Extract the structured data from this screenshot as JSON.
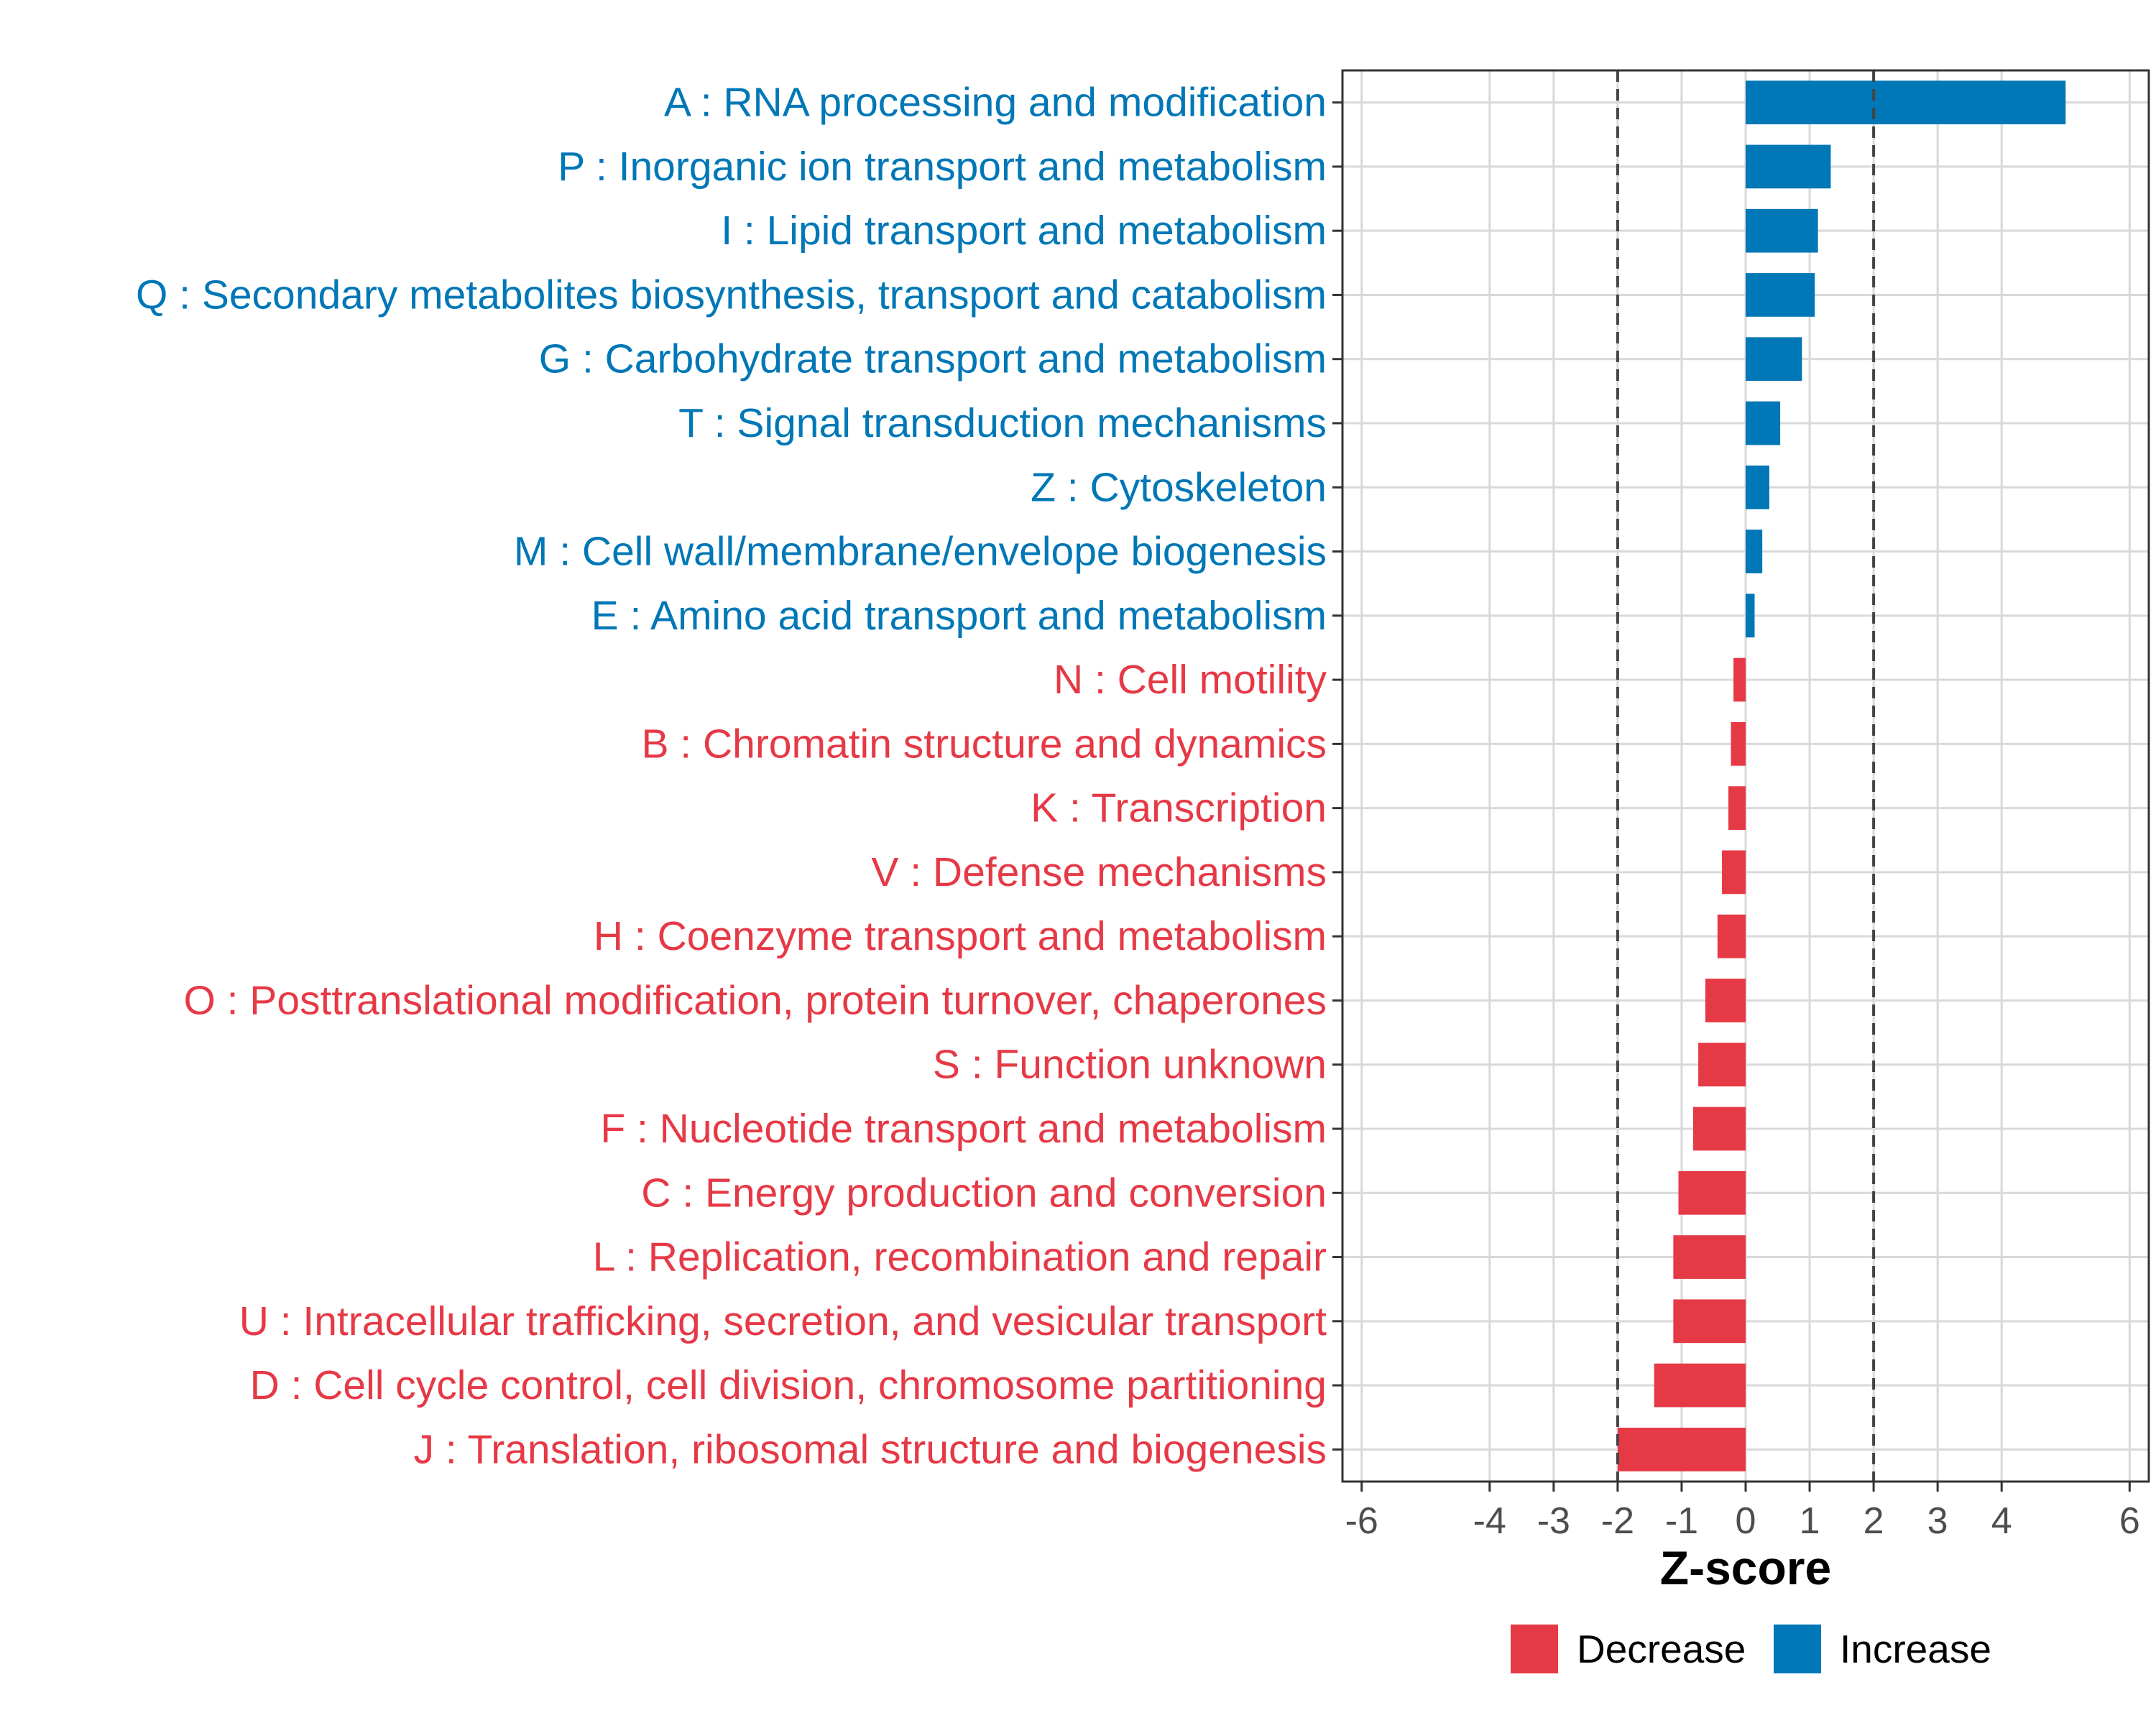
{
  "chart_data": {
    "type": "bar",
    "orientation": "horizontal",
    "xlabel": "Z-score",
    "ylabel": "",
    "xlim": [
      -6.3,
      6.3
    ],
    "xticks": [
      -6,
      -4,
      -3,
      -2,
      -1,
      0,
      1,
      2,
      3,
      4,
      6
    ],
    "threshold_lines": [
      -2,
      2
    ],
    "grid": true,
    "legend_position": "bottom",
    "colors": {
      "Decrease": "#e63946",
      "Increase": "#0077b6"
    },
    "legend": [
      {
        "label": "Decrease",
        "color": "#e63946"
      },
      {
        "label": "Increase",
        "color": "#0077b6"
      }
    ],
    "categories": [
      "A : RNA processing and modification",
      "P : Inorganic ion transport and metabolism",
      "I : Lipid transport and metabolism",
      "Q : Secondary metabolites biosynthesis, transport and catabolism",
      "G : Carbohydrate transport and metabolism",
      "T : Signal transduction mechanisms",
      "Z : Cytoskeleton",
      "M : Cell wall/membrane/envelope biogenesis",
      "E : Amino acid transport and metabolism",
      "N : Cell motility",
      "B : Chromatin structure and dynamics",
      "K : Transcription",
      "V : Defense mechanisms",
      "H : Coenzyme transport and metabolism",
      "O : Posttranslational modification, protein turnover, chaperones",
      "S : Function unknown",
      "F : Nucleotide transport and metabolism",
      "C : Energy production and conversion",
      "L : Replication, recombination and repair",
      "U : Intracellular trafficking, secretion, and vesicular transport",
      "D : Cell cycle control, cell division, chromosome partitioning",
      "J : Translation, ribosomal structure and biogenesis"
    ],
    "values": [
      5.0,
      1.33,
      1.13,
      1.08,
      0.88,
      0.54,
      0.37,
      0.26,
      0.14,
      -0.19,
      -0.23,
      -0.27,
      -0.37,
      -0.44,
      -0.63,
      -0.74,
      -0.82,
      -1.05,
      -1.13,
      -1.13,
      -1.43,
      -2.0
    ],
    "groups": [
      "Increase",
      "Increase",
      "Increase",
      "Increase",
      "Increase",
      "Increase",
      "Increase",
      "Increase",
      "Increase",
      "Decrease",
      "Decrease",
      "Decrease",
      "Decrease",
      "Decrease",
      "Decrease",
      "Decrease",
      "Decrease",
      "Decrease",
      "Decrease",
      "Decrease",
      "Decrease",
      "Decrease"
    ]
  }
}
